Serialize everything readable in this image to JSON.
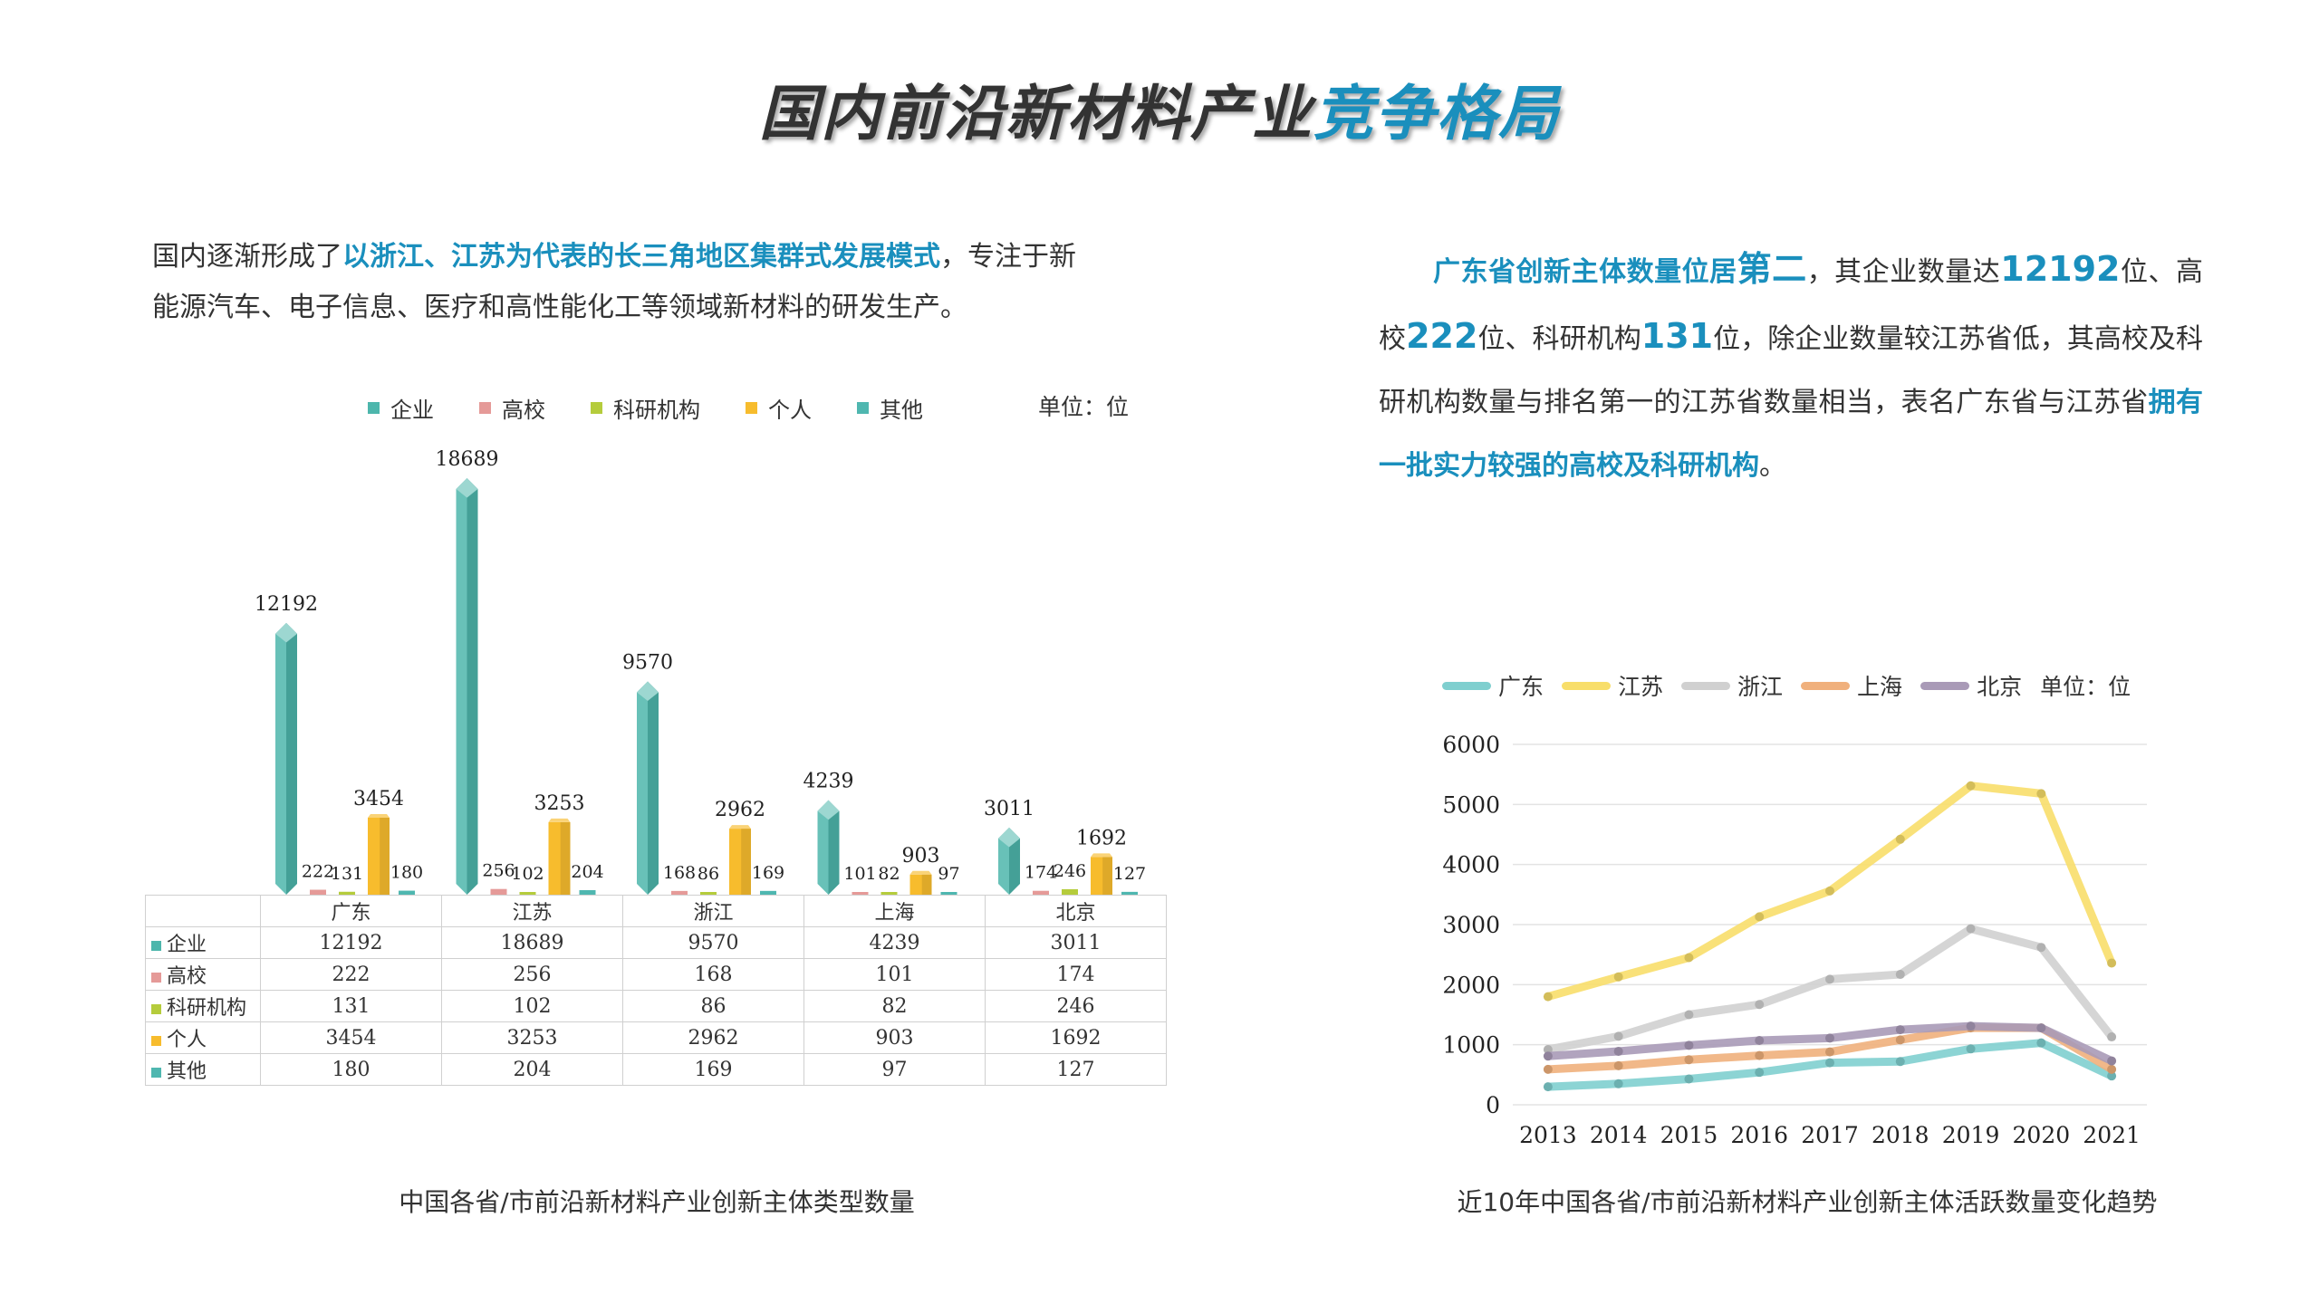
{
  "title": {
    "part1": "国内前沿新材料产业",
    "part2": "竞争格局"
  },
  "left_text": {
    "s1": "国内逐渐形成了",
    "s2": "以浙江、江苏为代表的长三角地区集群式发展模式",
    "s3": "，专注于新能源汽车、电子信息、医疗和高性能化工等领域新材料的研发生产。"
  },
  "right_text": {
    "s1": "广东省创新主体数量位居",
    "s2": "第二",
    "s3": "，其企业数量达",
    "s4": "12192",
    "s5": "位、高校",
    "s6": "222",
    "s7": "位、科研机构",
    "s8": "131",
    "s9": "位，除企业数量较江苏省低，其高校及科研机构数量与排名第一的江苏省数量相当，表名广东省与江苏省",
    "s10": "拥有一批实力较强的高校及科研机构",
    "s11": "。"
  },
  "bar_chart": {
    "unit": "单位：位",
    "caption": "中国各省/市前沿新材料产业创新主体类型数量"
  },
  "line_chart": {
    "unit": "单位：位",
    "caption": "近10年中国各省/市前沿新材料产业创新主体活跃数量变化趋势"
  },
  "colors": {
    "accent": "#1a8fbd",
    "企业": "#4db6ac",
    "高校": "#e59a98",
    "科研机构": "#b5cc3c",
    "个人": "#f7bc2d",
    "其他": "#4fb7b0",
    "广东": "#7fcfcf",
    "江苏": "#f8de6a",
    "浙江": "#d0d0d0",
    "上海": "#f0b07c",
    "北京": "#a99ab7"
  },
  "chart_data": [
    {
      "type": "bar",
      "categories": [
        "广东",
        "江苏",
        "浙江",
        "上海",
        "北京"
      ],
      "series": [
        {
          "name": "企业",
          "values": [
            12192,
            18689,
            9570,
            4239,
            3011
          ]
        },
        {
          "name": "高校",
          "values": [
            222,
            256,
            168,
            101,
            174
          ]
        },
        {
          "name": "科研机构",
          "values": [
            131,
            102,
            86,
            82,
            246
          ]
        },
        {
          "name": "个人",
          "values": [
            3454,
            3253,
            2962,
            903,
            1692
          ]
        },
        {
          "name": "其他",
          "values": [
            180,
            204,
            169,
            97,
            127
          ]
        }
      ],
      "legend": "top",
      "data_table": true
    },
    {
      "type": "line",
      "x": [
        2013,
        2014,
        2015,
        2016,
        2017,
        2018,
        2019,
        2020,
        2021
      ],
      "ylim": [
        0,
        6000
      ],
      "yticks": [
        0,
        1000,
        2000,
        3000,
        4000,
        5000,
        6000
      ],
      "series": [
        {
          "name": "广东",
          "values": [
            300,
            350,
            430,
            540,
            700,
            720,
            930,
            1030,
            480
          ]
        },
        {
          "name": "江苏",
          "values": [
            1800,
            2130,
            2450,
            3130,
            3560,
            4420,
            5310,
            5180,
            2360
          ]
        },
        {
          "name": "浙江",
          "values": [
            920,
            1140,
            1500,
            1670,
            2090,
            2170,
            2930,
            2620,
            1130
          ]
        },
        {
          "name": "上海",
          "values": [
            590,
            650,
            750,
            820,
            880,
            1080,
            1280,
            1280,
            590
          ]
        },
        {
          "name": "北京",
          "values": [
            810,
            890,
            990,
            1070,
            1110,
            1250,
            1310,
            1280,
            730
          ]
        }
      ],
      "grid": "horizontal",
      "legend": "top"
    }
  ]
}
